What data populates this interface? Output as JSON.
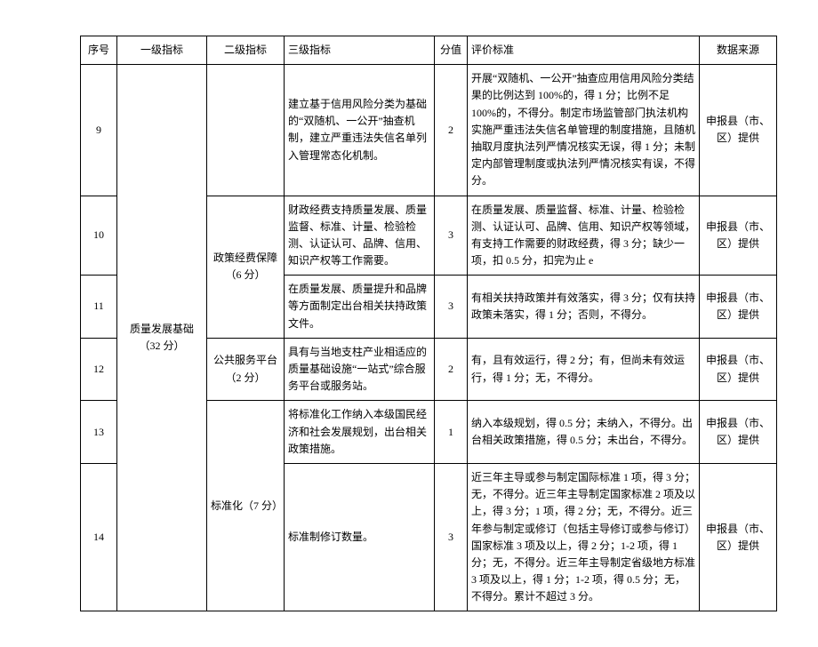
{
  "headers": {
    "seq": "序号",
    "l1": "一级指标",
    "l2": "二级指标",
    "l3": "三级指标",
    "score": "分值",
    "std": "评价标准",
    "src": "数据来源"
  },
  "l1_label": "质量发展基础（32 分）",
  "l2_policy": "政策经费保障（6 分）",
  "l2_platform": "公共服务平台（2 分）",
  "l2_standard": "标准化（7 分）",
  "rows": {
    "r9": {
      "seq": "9",
      "l3": "建立基于信用风险分类为基础的“双随机、一公开”抽查机制，建立严重违法失信名单列入管理常态化机制。",
      "score": "2",
      "std": "开展“双随机、一公开”抽查应用信用风险分类结果的比例达到 100%的，得 1 分；比例不足 100%的，不得分。制定市场监管部门执法机构实施严重违法失信名单管理的制度措施，且随机抽取月度执法列严情况核实无误，得 1 分；未制定内部管理制度或执法列严情况核实有误，不得分。",
      "src": "申报县（市、区）提供"
    },
    "r10": {
      "seq": "10",
      "l3": "财政经费支持质量发展、质量监督、标准、计量、检验检测、认证认可、品牌、信用、知识产权等工作需要。",
      "score": "3",
      "std": "在质量发展、质量监督、标准、计量、检验检测、认证认可、品牌、信用、知识产权等领域，有支持工作需要的财政经费，得 3 分；缺少一项，扣 0.5 分，扣完为止 e",
      "src": "申报县（市、区）提供"
    },
    "r11": {
      "seq": "11",
      "l3": "在质量发展、质量提升和品牌等方面制定出台相关扶持政策文件。",
      "score": "3",
      "std": "有相关扶持政策并有效落实，得 3 分；仅有扶持政策未落实，得 1 分；否则，不得分。",
      "src": "申报县（市、区）提供"
    },
    "r12": {
      "seq": "12",
      "l3": "具有与当地支柱产业相适应的质量基础设施“一站式”综合服务平台或服务站。",
      "score": "2",
      "std": "有，且有效运行，得 2 分；有，但尚未有效运行，得 1 分；无，不得分。",
      "src": "申报县（市、区）提供"
    },
    "r13": {
      "seq": "13",
      "l3": "将标准化工作纳入本级国民经济和社会发展规划，出台相关政策措施。",
      "score": "1",
      "std": "纳入本级规划，得 0.5 分；未纳入，不得分。出台相关政策措施，得 0.5 分；未出台，不得分。",
      "src": "申报县（市、区）提供"
    },
    "r14": {
      "seq": "14",
      "l3": "标准制修订数量。",
      "score": "3",
      "std": "近三年主导或参与制定国际标准 1 项，得 3 分；无，不得分。近三年主导制定国家标准 2 项及以上，得 3 分；1 项，得 2 分；无，不得分。近三年参与制定或修订（包括主导修订或参与修订）国家标准 3 项及以上，得 2 分；1-2 项，得 1 分；无，不得分。近三年主导制定省级地方标准 3 项及以上，得 1 分；1-2 项，得 0.5 分；无，不得分。累计不超过 3 分。",
      "src": "申报县（市、区）提供"
    }
  }
}
